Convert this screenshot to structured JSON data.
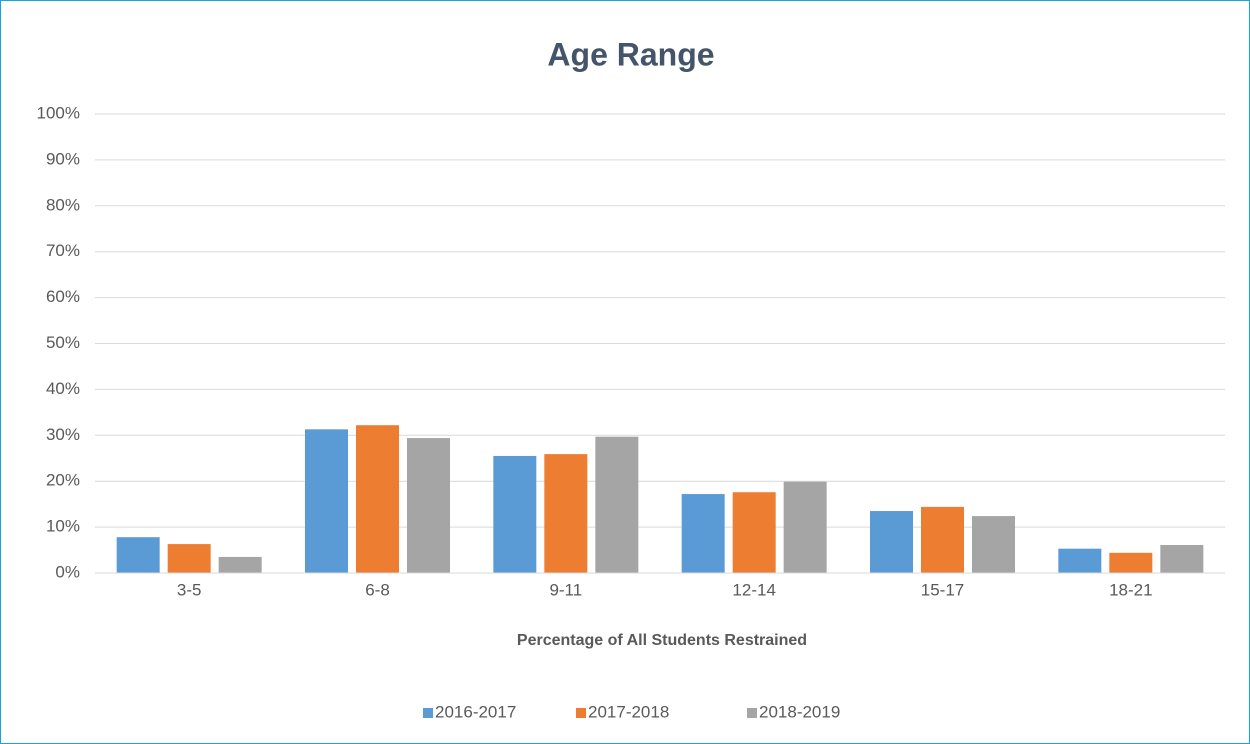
{
  "chart_data": {
    "type": "bar",
    "title": "Age Range",
    "x_label": "Percentage of All Students Restrained",
    "categories": [
      "3-5",
      "6-8",
      "9-11",
      "12-14",
      "15-17",
      "18-21"
    ],
    "series": [
      {
        "name": "2016-2017",
        "color": "#5b9bd5",
        "values": [
          7.8,
          31.3,
          25.5,
          17.2,
          13.5,
          5.3
        ]
      },
      {
        "name": "2017-2018",
        "color": "#ed7d31",
        "values": [
          6.3,
          32.2,
          25.9,
          17.6,
          14.4,
          4.4
        ]
      },
      {
        "name": "2018-2019",
        "color": "#a5a5a5",
        "values": [
          3.5,
          29.4,
          29.7,
          19.9,
          12.4,
          6.1
        ]
      }
    ],
    "ylim": [
      0,
      100
    ],
    "yticks": [
      {
        "value": 0,
        "label": "0%"
      },
      {
        "value": 10,
        "label": "10%"
      },
      {
        "value": 20,
        "label": "20%"
      },
      {
        "value": 30,
        "label": "30%"
      },
      {
        "value": 40,
        "label": "40%"
      },
      {
        "value": 50,
        "label": "50%"
      },
      {
        "value": 60,
        "label": "60%"
      },
      {
        "value": 70,
        "label": "70%"
      },
      {
        "value": 80,
        "label": "80%"
      },
      {
        "value": 90,
        "label": "90%"
      },
      {
        "value": 100,
        "label": "100%"
      }
    ],
    "grid": true,
    "legend": "bottom"
  }
}
